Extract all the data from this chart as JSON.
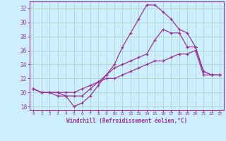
{
  "xlabel": "Windchill (Refroidissement éolien,°C)",
  "background_color": "#cceeff",
  "grid_color": "#b0d8cc",
  "line_color": "#993399",
  "x_ticks": [
    0,
    1,
    2,
    3,
    4,
    5,
    6,
    7,
    8,
    9,
    10,
    11,
    12,
    13,
    14,
    15,
    16,
    17,
    18,
    19,
    20,
    21,
    22,
    23
  ],
  "ylim": [
    17.5,
    33.0
  ],
  "yticks": [
    18,
    20,
    22,
    24,
    26,
    28,
    30,
    32
  ],
  "line1": [
    20.5,
    20.0,
    20.0,
    19.5,
    19.5,
    18.0,
    18.5,
    19.5,
    21.0,
    22.5,
    24.0,
    26.5,
    28.5,
    30.5,
    32.5,
    32.5,
    31.5,
    30.5,
    29.0,
    28.5,
    26.5,
    23.0,
    22.5,
    22.5
  ],
  "line2": [
    20.5,
    20.0,
    20.0,
    20.0,
    19.5,
    19.5,
    19.5,
    20.5,
    21.5,
    22.5,
    23.5,
    24.0,
    24.5,
    25.0,
    25.5,
    27.5,
    29.0,
    28.5,
    28.5,
    26.5,
    26.5,
    23.0,
    22.5,
    22.5
  ],
  "line3": [
    20.5,
    20.0,
    20.0,
    20.0,
    20.0,
    20.0,
    20.5,
    21.0,
    21.5,
    22.0,
    22.0,
    22.5,
    23.0,
    23.5,
    24.0,
    24.5,
    24.5,
    25.0,
    25.5,
    25.5,
    26.0,
    22.5,
    22.5,
    22.5
  ]
}
